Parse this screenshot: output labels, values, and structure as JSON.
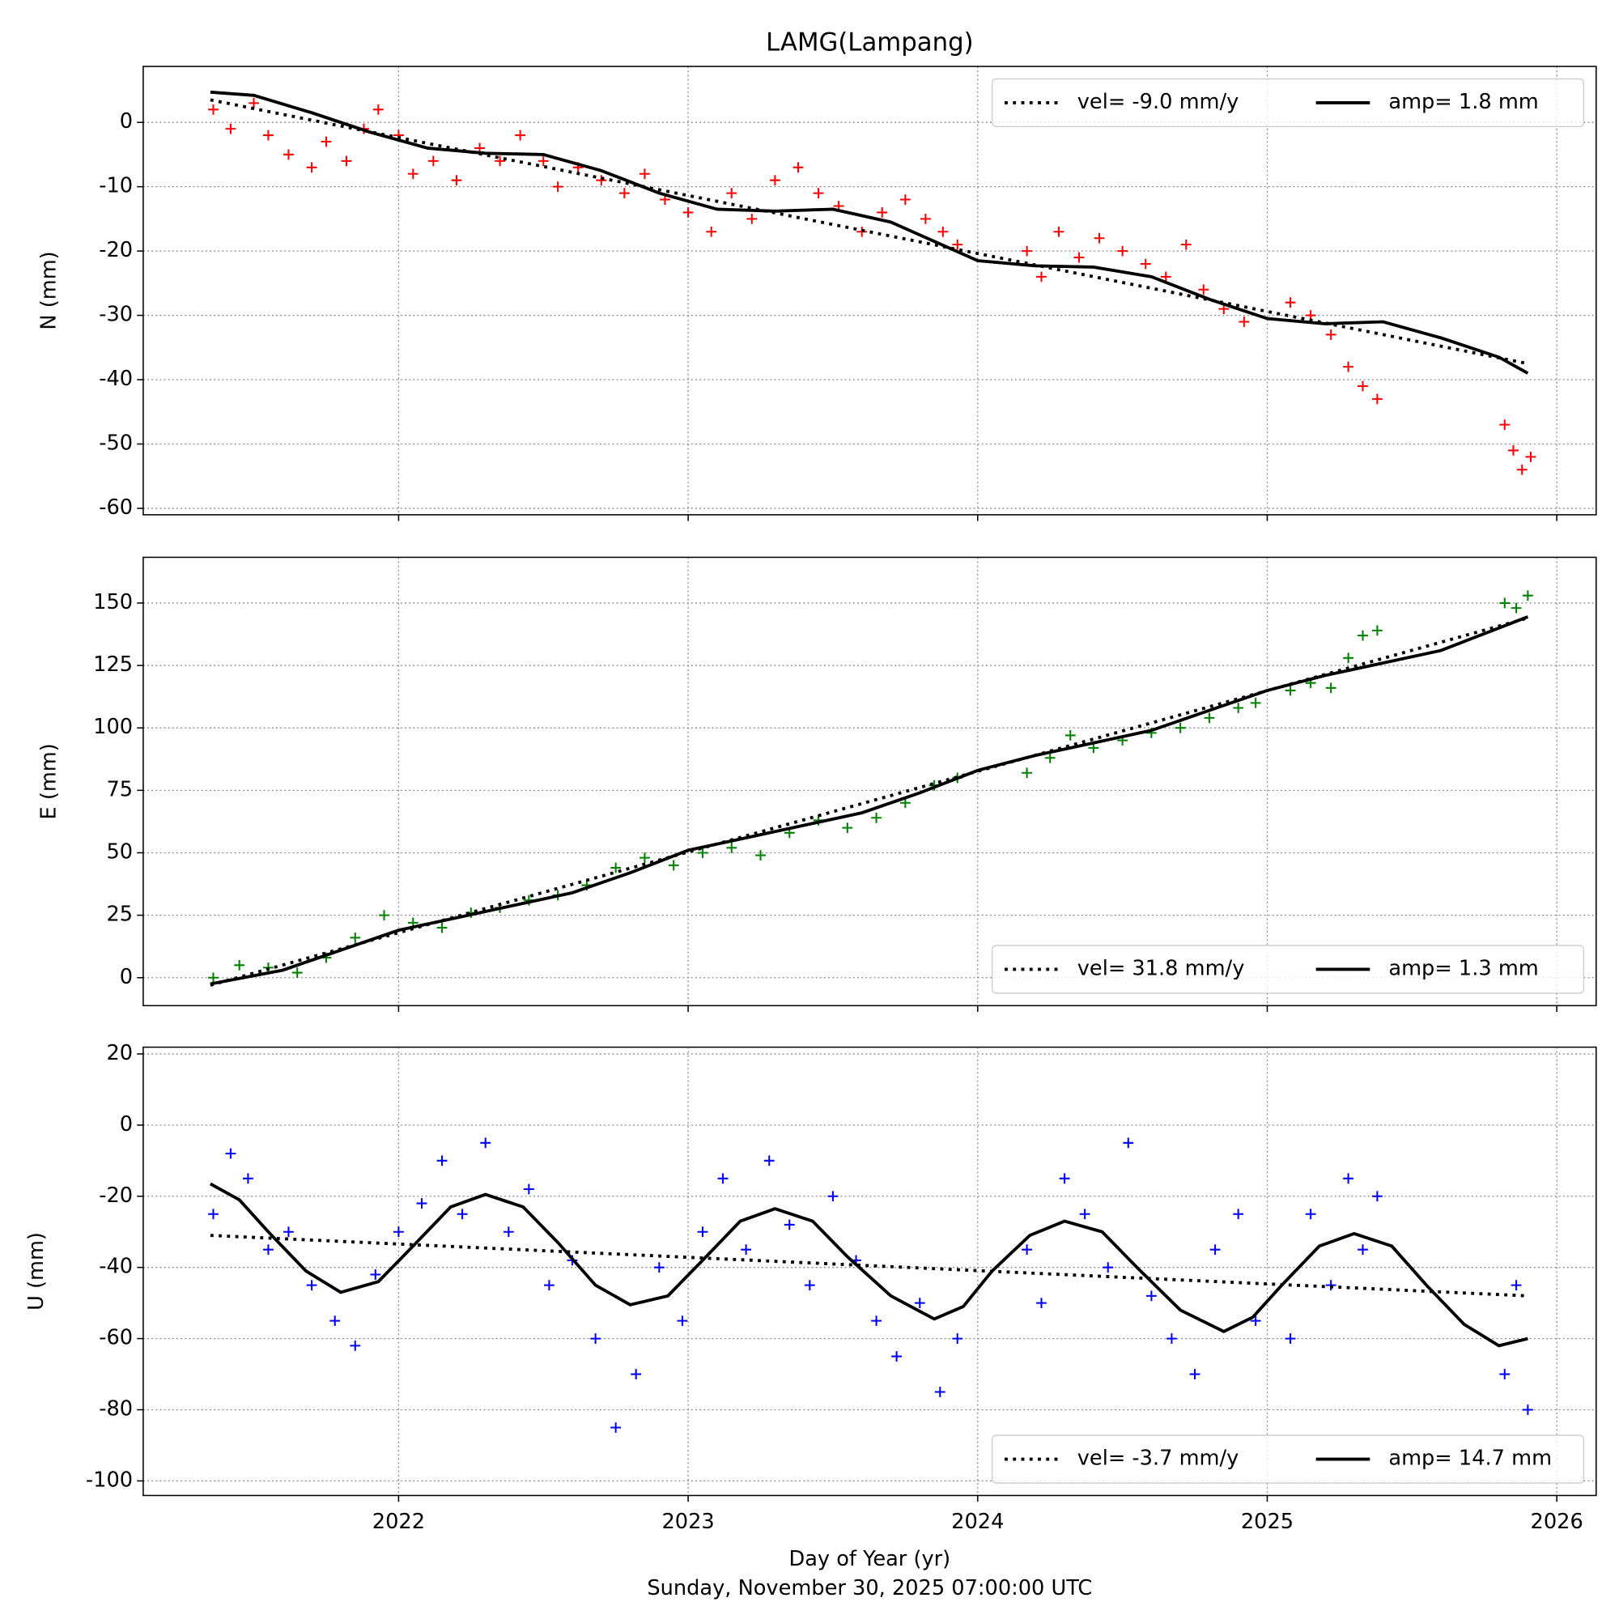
{
  "title": "LAMG(Lampang)",
  "xlabel": "Day of Year (yr)",
  "caption": "Sunday, November 30, 2025 07:00:00 UTC",
  "chart_data": [
    {
      "type": "scatter",
      "ylabel": "N (mm)",
      "xlim": [
        2021.118,
        2026.136
      ],
      "xticks": [
        2022,
        2023,
        2024,
        2025,
        2026
      ],
      "ylim": [
        -61,
        8.7
      ],
      "yticks": [
        -60,
        -50,
        -40,
        -30,
        -20,
        -10,
        0
      ],
      "grid": true,
      "legend": "upper right",
      "series": [
        {
          "color": "#ff0000",
          "marker": "+",
          "x": [
            2021.36,
            2021.42,
            2021.5,
            2021.55,
            2021.62,
            2021.7,
            2021.75,
            2021.82,
            2021.88,
            2021.93,
            2022.0,
            2022.05,
            2022.12,
            2022.2,
            2022.28,
            2022.35,
            2022.42,
            2022.5,
            2022.55,
            2022.62,
            2022.7,
            2022.78,
            2022.85,
            2022.92,
            2023.0,
            2023.08,
            2023.15,
            2023.22,
            2023.3,
            2023.38,
            2023.45,
            2023.52,
            2023.6,
            2023.67,
            2023.75,
            2023.82,
            2023.88,
            2023.93,
            2024.17,
            2024.22,
            2024.28,
            2024.35,
            2024.42,
            2024.5,
            2024.58,
            2024.65,
            2024.72,
            2024.78,
            2024.85,
            2024.92,
            2025.08,
            2025.15,
            2025.22,
            2025.28,
            2025.33,
            2025.38,
            2025.82,
            2025.85,
            2025.88,
            2025.91
          ],
          "values": [
            2,
            -1,
            3,
            -2,
            -5,
            -7,
            -3,
            -6,
            -1,
            2,
            -2,
            -8,
            -6,
            -9,
            -4,
            -6,
            -2,
            -6,
            -10,
            -7,
            -9,
            -11,
            -8,
            -12,
            -14,
            -17,
            -11,
            -15,
            -9,
            -7,
            -11,
            -13,
            -17,
            -14,
            -12,
            -15,
            -17,
            -19,
            -20,
            -24,
            -17,
            -21,
            -18,
            -20,
            -22,
            -24,
            -19,
            -26,
            -29,
            -31,
            -28,
            -30,
            -33,
            -38,
            -41,
            -43,
            -47,
            -51,
            -54,
            -52
          ]
        },
        {
          "name": "vel= -9.0 mm/y",
          "color": "#000000",
          "style": "dotted",
          "x": [
            2021.35,
            2025.9
          ],
          "values": [
            3.5,
            -37.5
          ]
        },
        {
          "name": "amp= 1.8 mm",
          "color": "#000000",
          "style": "solid",
          "x": [
            2021.35,
            2021.5,
            2021.7,
            2021.9,
            2022.1,
            2022.3,
            2022.5,
            2022.7,
            2022.9,
            2023.1,
            2023.3,
            2023.5,
            2023.7,
            2023.9,
            2024.0,
            2024.2,
            2024.4,
            2024.6,
            2024.8,
            2025.0,
            2025.2,
            2025.4,
            2025.6,
            2025.8,
            2025.9
          ],
          "values": [
            4.7,
            4.2,
            1.5,
            -1.5,
            -4,
            -4.8,
            -5,
            -7.5,
            -11,
            -13.5,
            -13.8,
            -13.5,
            -15.5,
            -19.5,
            -21.5,
            -22.3,
            -22.5,
            -24,
            -27.5,
            -30.5,
            -31.3,
            -31,
            -33.5,
            -36.5,
            -39
          ]
        }
      ]
    },
    {
      "type": "scatter",
      "ylabel": "E (mm)",
      "xlim": [
        2021.118,
        2026.136
      ],
      "xticks": [
        2022,
        2023,
        2024,
        2025,
        2026
      ],
      "ylim": [
        -11.2,
        168.3
      ],
      "yticks": [
        0,
        25,
        50,
        75,
        100,
        125,
        150
      ],
      "grid": true,
      "legend": "lower right",
      "series": [
        {
          "color": "#008000",
          "marker": "+",
          "x": [
            2021.36,
            2021.45,
            2021.55,
            2021.65,
            2021.75,
            2021.85,
            2021.95,
            2022.05,
            2022.15,
            2022.25,
            2022.35,
            2022.45,
            2022.55,
            2022.65,
            2022.75,
            2022.85,
            2022.95,
            2023.05,
            2023.15,
            2023.25,
            2023.35,
            2023.45,
            2023.55,
            2023.65,
            2023.75,
            2023.85,
            2023.93,
            2024.17,
            2024.25,
            2024.32,
            2024.4,
            2024.5,
            2024.6,
            2024.7,
            2024.8,
            2024.9,
            2024.96,
            2025.08,
            2025.15,
            2025.22,
            2025.28,
            2025.33,
            2025.38,
            2025.82,
            2025.86,
            2025.9
          ],
          "values": [
            0,
            5,
            4,
            2,
            8,
            16,
            25,
            22,
            20,
            26,
            28,
            31,
            33,
            37,
            44,
            48,
            45,
            50,
            52,
            49,
            58,
            63,
            60,
            64,
            70,
            77,
            80,
            82,
            88,
            97,
            92,
            95,
            98,
            100,
            104,
            108,
            110,
            115,
            118,
            116,
            128,
            137,
            139,
            150,
            148,
            153
          ]
        },
        {
          "name": "vel= 31.8 mm/y",
          "color": "#000000",
          "style": "dotted",
          "x": [
            2021.35,
            2025.9
          ],
          "values": [
            -3,
            144
          ]
        },
        {
          "name": "amp= 1.3 mm",
          "color": "#000000",
          "style": "solid",
          "x": [
            2021.35,
            2021.6,
            2021.8,
            2022.0,
            2022.2,
            2022.4,
            2022.6,
            2022.8,
            2023.0,
            2023.2,
            2023.4,
            2023.6,
            2023.8,
            2024.0,
            2024.2,
            2024.4,
            2024.6,
            2024.8,
            2025.0,
            2025.2,
            2025.4,
            2025.6,
            2025.9
          ],
          "values": [
            -2.5,
            3,
            11,
            19,
            24,
            29,
            34,
            42,
            51,
            56,
            61,
            66,
            74,
            83,
            89,
            94,
            99,
            107,
            115,
            121,
            126,
            131,
            144.5
          ]
        }
      ]
    },
    {
      "type": "scatter",
      "ylabel": "U (mm)",
      "xlim": [
        2021.118,
        2026.136
      ],
      "xticks": [
        2022,
        2023,
        2024,
        2025,
        2026
      ],
      "ylim": [
        -104.1,
        21.9
      ],
      "yticks": [
        -100,
        -80,
        -60,
        -40,
        -20,
        0,
        20
      ],
      "grid": true,
      "legend": "lower right",
      "series": [
        {
          "color": "#0000ff",
          "marker": "+",
          "x": [
            2021.36,
            2021.42,
            2021.48,
            2021.55,
            2021.62,
            2021.7,
            2021.78,
            2021.85,
            2021.92,
            2022.0,
            2022.08,
            2022.15,
            2022.22,
            2022.3,
            2022.38,
            2022.45,
            2022.52,
            2022.6,
            2022.68,
            2022.75,
            2022.82,
            2022.9,
            2022.98,
            2023.05,
            2023.12,
            2023.2,
            2023.28,
            2023.35,
            2023.42,
            2023.5,
            2023.58,
            2023.65,
            2023.72,
            2023.8,
            2023.87,
            2023.93,
            2024.17,
            2024.22,
            2024.3,
            2024.37,
            2024.45,
            2024.52,
            2024.6,
            2024.67,
            2024.75,
            2024.82,
            2024.9,
            2024.96,
            2025.08,
            2025.15,
            2025.22,
            2025.28,
            2025.33,
            2025.38,
            2025.82,
            2025.86,
            2025.9
          ],
          "values": [
            -25,
            -8,
            -15,
            -35,
            -30,
            -45,
            -55,
            -62,
            -42,
            -30,
            -22,
            -10,
            -25,
            -5,
            -30,
            -18,
            -45,
            -38,
            -60,
            -85,
            -70,
            -40,
            -55,
            -30,
            -15,
            -35,
            -10,
            -28,
            -45,
            -20,
            -38,
            -55,
            -65,
            -50,
            -75,
            -60,
            -35,
            -50,
            -15,
            -25,
            -40,
            -5,
            -48,
            -60,
            -70,
            -35,
            -25,
            -55,
            -60,
            -25,
            -45,
            -15,
            -35,
            -20,
            -70,
            -45,
            -80
          ]
        },
        {
          "name": "vel= -3.7 mm/y",
          "color": "#000000",
          "style": "dotted",
          "x": [
            2021.35,
            2025.9
          ],
          "values": [
            -31,
            -48
          ]
        },
        {
          "name": "amp= 14.7 mm",
          "color": "#000000",
          "style": "solid",
          "x": [
            2021.35,
            2021.45,
            2021.55,
            2021.68,
            2021.8,
            2021.93,
            2022.05,
            2022.18,
            2022.3,
            2022.43,
            2022.55,
            2022.68,
            2022.8,
            2022.93,
            2023.05,
            2023.18,
            2023.3,
            2023.43,
            2023.55,
            2023.7,
            2023.85,
            2023.95,
            2024.05,
            2024.18,
            2024.3,
            2024.43,
            2024.55,
            2024.7,
            2024.85,
            2024.95,
            2025.05,
            2025.18,
            2025.3,
            2025.43,
            2025.55,
            2025.68,
            2025.8,
            2025.9
          ],
          "values": [
            -16.5,
            -21,
            -30,
            -41,
            -47,
            -44,
            -34,
            -23,
            -19.5,
            -23,
            -33,
            -45,
            -50.5,
            -48,
            -38,
            -27,
            -23.5,
            -27,
            -37,
            -48,
            -54.5,
            -51,
            -41,
            -31,
            -27,
            -30,
            -40,
            -52,
            -58,
            -54,
            -45,
            -34,
            -30.5,
            -34,
            -45,
            -56,
            -62,
            -60
          ]
        }
      ]
    }
  ]
}
